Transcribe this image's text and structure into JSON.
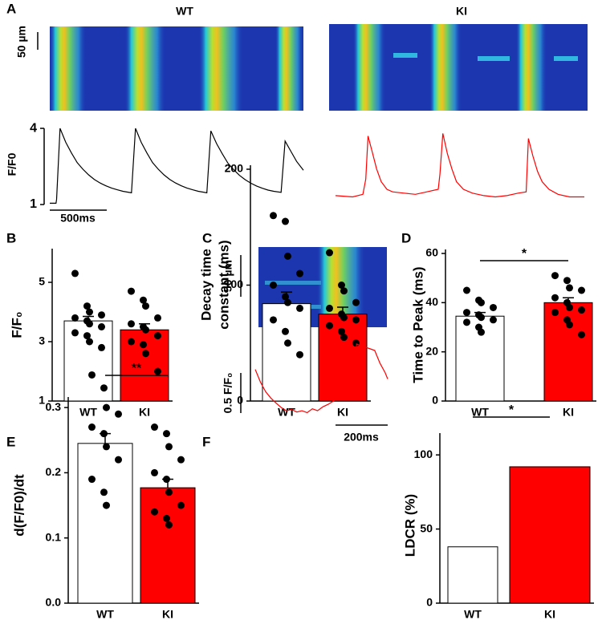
{
  "chart_data": [
    {
      "type": "line",
      "panel": "A",
      "title": "WT",
      "ylabel": "F/F0",
      "image_scale": "50 µm",
      "scale_bar": "500ms",
      "xlim": [
        0,
        2220
      ],
      "ylim": [
        1,
        4.2
      ],
      "yticks": [
        1,
        4
      ],
      "series": [
        {
          "name": "WT",
          "color": "#000000",
          "x": [
            0,
            55,
            60,
            90,
            140,
            190,
            240,
            290,
            340,
            390,
            440,
            490,
            540,
            590,
            640,
            715,
            750,
            800,
            850,
            900,
            950,
            1000,
            1050,
            1100,
            1150,
            1200,
            1250,
            1300,
            1375,
            1410,
            1460,
            1510,
            1560,
            1610,
            1660,
            1710,
            1760,
            1810,
            1860,
            1910,
            1960,
            2025,
            2060,
            2110,
            2160,
            2220
          ],
          "values": [
            1.05,
            1.05,
            1.2,
            4.0,
            3.45,
            3.03,
            2.65,
            2.39,
            2.17,
            1.99,
            1.85,
            1.74,
            1.65,
            1.58,
            1.52,
            1.46,
            4.0,
            3.45,
            3.03,
            2.65,
            2.39,
            2.17,
            1.99,
            1.85,
            1.74,
            1.65,
            1.58,
            1.52,
            1.46,
            3.9,
            3.4,
            3.0,
            2.62,
            2.37,
            2.15,
            1.98,
            1.84,
            1.73,
            1.64,
            1.57,
            1.52,
            1.48,
            3.5,
            3.1,
            2.7,
            2.35
          ]
        }
      ]
    },
    {
      "type": "line",
      "title": "KI",
      "xlim": [
        0,
        2180
      ],
      "ylim": [
        1,
        4.2
      ],
      "series": [
        {
          "name": "KI",
          "color": "#ff0000",
          "x": [
            0,
            150,
            240,
            265,
            285,
            320,
            360,
            400,
            450,
            500,
            600,
            700,
            800,
            900,
            915,
            940,
            980,
            1020,
            1060,
            1120,
            1200,
            1300,
            1400,
            1500,
            1600,
            1670,
            1690,
            1730,
            1770,
            1810,
            1870,
            1950,
            2050,
            2180
          ],
          "values": [
            1.35,
            1.3,
            1.4,
            2.0,
            3.7,
            3.1,
            2.4,
            1.9,
            1.6,
            1.5,
            1.45,
            1.4,
            1.5,
            1.6,
            2.2,
            3.8,
            3.0,
            2.4,
            1.9,
            1.6,
            1.45,
            1.35,
            1.3,
            1.35,
            1.45,
            1.5,
            3.6,
            2.9,
            2.3,
            1.9,
            1.6,
            1.4,
            1.3,
            1.3
          ]
        }
      ]
    },
    {
      "type": "bar",
      "panel": "B",
      "ylabel": "F/F₀",
      "categories": [
        "WT",
        "KI"
      ],
      "values": [
        3.7,
        3.4
      ],
      "errors": [
        0.15,
        0.2
      ],
      "colors": [
        "#ffffff",
        "#ff0000"
      ],
      "ylim": [
        1,
        6
      ],
      "yticks": [
        1,
        3,
        5
      ],
      "points": [
        [
          5.3,
          4.2,
          4.0,
          3.9,
          3.8,
          3.7,
          3.6,
          3.5,
          3.3,
          3.2,
          3.0,
          2.8
        ],
        [
          4.7,
          4.4,
          4.2,
          3.8,
          3.6,
          3.5,
          3.4,
          3.2,
          3.0,
          2.9,
          2.6,
          2.0
        ]
      ]
    },
    {
      "type": "bar",
      "panel": "C",
      "ylabel": [
        "Decay time",
        "constant (ms)"
      ],
      "categories": [
        "WT",
        "KI"
      ],
      "values": [
        84,
        75
      ],
      "errors": [
        10,
        6
      ],
      "colors": [
        "#ffffff",
        "#ff0000"
      ],
      "ylim": [
        0,
        200
      ],
      "yticks": [
        0,
        100,
        200
      ],
      "points": [
        [
          160,
          155,
          125,
          110,
          100,
          90,
          85,
          80,
          70,
          60,
          50,
          40
        ],
        [
          128,
          100,
          95,
          85,
          80,
          75,
          72,
          70,
          65,
          60,
          55,
          50
        ]
      ]
    },
    {
      "type": "bar",
      "panel": "D",
      "ylabel": "Time to Peak (ms)",
      "categories": [
        "WT",
        "KI"
      ],
      "values": [
        34.5,
        40
      ],
      "errors": [
        1.5,
        2
      ],
      "colors": [
        "#ffffff",
        "#ff0000"
      ],
      "ylim": [
        0,
        60
      ],
      "yticks": [
        0,
        20,
        40,
        60
      ],
      "significance": "*",
      "points": [
        [
          45,
          41,
          40,
          38,
          36,
          35,
          34,
          33,
          32,
          30,
          28
        ],
        [
          51,
          49,
          46,
          45,
          42,
          40,
          38,
          37,
          36,
          33,
          31,
          27
        ]
      ]
    },
    {
      "type": "bar",
      "panel": "E",
      "ylabel": "d(F/F0)/dt",
      "categories": [
        "WT",
        "KI"
      ],
      "values": [
        0.245,
        0.177
      ],
      "errors": [
        0.015,
        0.013
      ],
      "colors": [
        "#ffffff",
        "#ff0000"
      ],
      "ylim": [
        0,
        0.31
      ],
      "yticks": [
        {
          "value": 0,
          "label": "0.0"
        },
        0.1,
        0.2,
        0.3
      ],
      "significance": "**",
      "points": [
        [
          0.35,
          0.33,
          0.3,
          0.29,
          0.27,
          0.26,
          0.24,
          0.22,
          0.19,
          0.17,
          0.15
        ],
        [
          0.27,
          0.26,
          0.24,
          0.22,
          0.2,
          0.19,
          0.17,
          0.15,
          0.14,
          0.13,
          0.12
        ]
      ]
    },
    {
      "type": "line",
      "panel": "F",
      "image_scale": "50 µm",
      "yscale_bar": "0.5 F/F₀",
      "scale_bar": "200ms",
      "xlim": [
        0,
        510
      ],
      "ylim": [
        1.2,
        2.4
      ],
      "series": [
        {
          "name": "KI",
          "color": "#ff0000",
          "x": [
            0,
            20,
            40,
            60,
            80,
            100,
            120,
            140,
            160,
            180,
            200,
            220,
            240,
            260,
            280,
            300,
            320,
            340,
            360,
            380,
            390,
            460,
            480,
            500,
            510
          ],
          "values": [
            1.95,
            1.75,
            1.6,
            1.5,
            1.42,
            1.35,
            1.3,
            1.32,
            1.28,
            1.3,
            1.27,
            1.33,
            1.3,
            1.36,
            1.4,
            1.45,
            1.5,
            1.55,
            1.6,
            1.65,
            2.35,
            2.25,
            2.05,
            1.9,
            1.8
          ]
        }
      ]
    },
    {
      "type": "bar",
      "ylabel": "LDCR (%)",
      "categories": [
        "WT",
        "KI"
      ],
      "values": [
        38,
        92
      ],
      "colors": [
        "#ffffff",
        "#ff0000"
      ],
      "ylim": [
        0,
        112
      ],
      "yticks": [
        0,
        50,
        100
      ],
      "significance": "*"
    }
  ]
}
